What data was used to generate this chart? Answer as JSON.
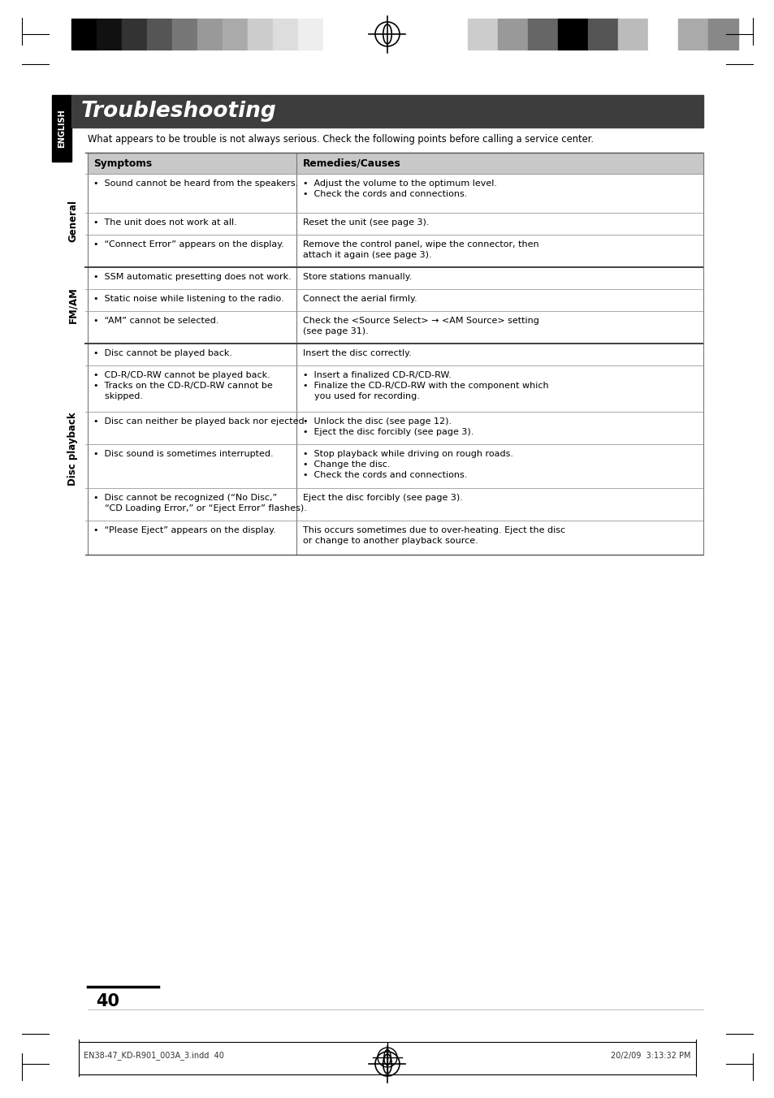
{
  "page_bg": "#ffffff",
  "title": "Troubleshooting",
  "title_bg": "#3d3d3d",
  "title_color": "#ffffff",
  "subtitle": "What appears to be trouble is not always serious. Check the following points before calling a service center.",
  "english_tab_bg": "#000000",
  "english_tab_text": "ENGLISH",
  "header_bg": "#c8c8c8",
  "col1_header": "Symptoms",
  "col2_header": "Remedies/Causes",
  "page_number": "40",
  "footer_left": "EN38-47_KD-R901_003A_3.indd  40",
  "footer_right": "20/2/09  3:13:32 PM",
  "bar_colors_left": [
    "#000000",
    "#111111",
    "#333333",
    "#555555",
    "#777777",
    "#999999",
    "#aaaaaa",
    "#cccccc",
    "#dddddd",
    "#eeeeee",
    "#ffffff"
  ],
  "bar_colors_right": [
    "#cccccc",
    "#999999",
    "#666666",
    "#000000",
    "#555555",
    "#bbbbbb",
    "#ffffff",
    "#aaaaaa",
    "#888888"
  ]
}
